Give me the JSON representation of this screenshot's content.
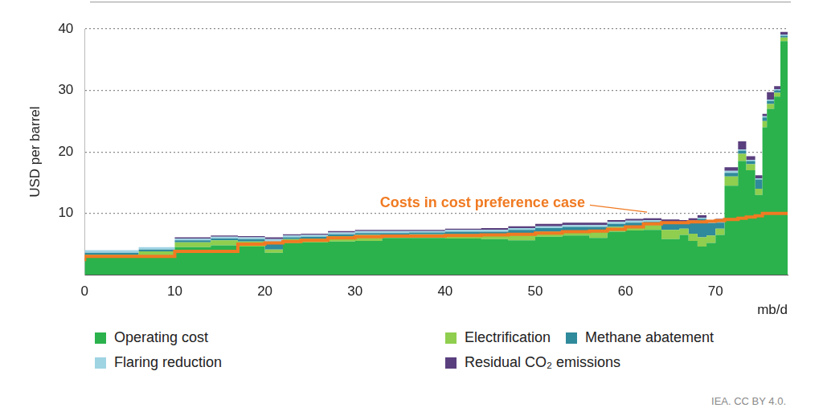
{
  "chart_data": {
    "type": "area",
    "stacked": true,
    "line_style": "stepped",
    "grid": true,
    "legend": "bottom",
    "xlabel": "mb/d",
    "ylabel": "USD per barrel",
    "source": "IEA. CC BY 4.0.",
    "xlim": [
      0,
      78
    ],
    "xticks": [
      0,
      10,
      20,
      30,
      40,
      50,
      60,
      70
    ],
    "ylim": [
      0,
      40
    ],
    "yticks": [
      10,
      20,
      30,
      40
    ],
    "x": [
      0,
      6,
      10,
      14,
      17,
      20,
      22,
      24,
      27,
      30,
      33,
      36,
      40,
      44,
      47,
      50,
      53,
      56,
      58,
      60,
      62,
      64,
      66,
      67,
      68,
      69,
      70,
      71,
      72.5,
      73.4,
      74.4,
      75.2,
      75.7,
      76.5,
      77.2,
      77.6,
      78
    ],
    "series": [
      {
        "name": "Operating cost",
        "color": "#2bb24c",
        "values": [
          2.0,
          2.8,
          3.2,
          4.5,
          4.8,
          4.6,
          3.6,
          5.2,
          5.3,
          5.4,
          5.5,
          6.0,
          6.0,
          5.9,
          5.8,
          5.6,
          6.2,
          6.4,
          6.0,
          7.0,
          7.2,
          7.3,
          5.8,
          6.5,
          5.5,
          4.6,
          5.2,
          6.5,
          14.5,
          18.5,
          17,
          13,
          24,
          27,
          29,
          38,
          38
        ]
      },
      {
        "name": "Electrification",
        "color": "#8fce4e",
        "values": [
          0.5,
          0.5,
          0.6,
          0.8,
          0.8,
          0.8,
          0.5,
          0.6,
          0.6,
          0.9,
          1.0,
          0.5,
          0.6,
          0.7,
          0.8,
          1.2,
          0.8,
          0.8,
          1.0,
          0.8,
          0.8,
          0.8,
          1.5,
          1.0,
          1.2,
          1.5,
          1.2,
          1.0,
          1.5,
          1.2,
          1.0,
          1.0,
          1.0,
          0.8,
          0.6,
          0.6,
          0.6
        ]
      },
      {
        "name": "Methane abatement",
        "color": "#2f8a9b",
        "values": [
          0.3,
          0.3,
          0.3,
          0.3,
          0.3,
          0.4,
          1.2,
          0.3,
          0.3,
          0.3,
          0.3,
          0.3,
          0.3,
          0.4,
          0.4,
          0.5,
          0.6,
          0.6,
          0.8,
          0.5,
          0.5,
          0.5,
          1.0,
          0.8,
          1.8,
          3.0,
          2.0,
          1.0,
          0.6,
          0.5,
          0.5,
          1.5,
          0.6,
          0.5,
          0.4,
          0.3,
          0.3
        ]
      },
      {
        "name": "Flaring reduction",
        "color": "#9fd4e3",
        "values": [
          0.4,
          0.4,
          0.4,
          0.3,
          0.3,
          0.3,
          0.5,
          0.3,
          0.3,
          0.3,
          0.3,
          0.3,
          0.2,
          0.3,
          0.3,
          0.3,
          0.3,
          0.3,
          0.3,
          0.3,
          0.3,
          0.3,
          0.3,
          0.3,
          0.3,
          0.2,
          0.2,
          0.2,
          0.3,
          0.2,
          0.2,
          0.2,
          0.2,
          0.2,
          0.2,
          0.2,
          0.2
        ]
      },
      {
        "name": "Residual CO₂ emissions",
        "color": "#5a3f7e",
        "values": [
          0,
          0,
          0,
          0.2,
          0.2,
          0.2,
          0.3,
          0.2,
          0.2,
          0.2,
          0.2,
          0.2,
          0.2,
          0.2,
          0.3,
          0.3,
          0.4,
          0.4,
          0.4,
          0.3,
          0.3,
          0.3,
          0.4,
          0.3,
          0.4,
          0.4,
          0.3,
          0.4,
          0.6,
          1.3,
          0.6,
          0.5,
          0.4,
          1.2,
          0.5,
          0.4,
          0.4
        ]
      },
      {
        "name": "Costs in cost preference case",
        "type": "line",
        "color": "#f07a22",
        "values": [
          2.2,
          3.0,
          3.0,
          3.8,
          3.8,
          5.0,
          5.2,
          5.4,
          5.6,
          6.0,
          6.2,
          6.3,
          6.3,
          6.4,
          6.5,
          6.6,
          6.8,
          7.0,
          7.1,
          7.4,
          7.8,
          8.3,
          8.5,
          8.5,
          8.6,
          8.6,
          8.7,
          8.8,
          9.0,
          9.2,
          9.4,
          9.6,
          10,
          10,
          10,
          10,
          10
        ]
      }
    ]
  }
}
